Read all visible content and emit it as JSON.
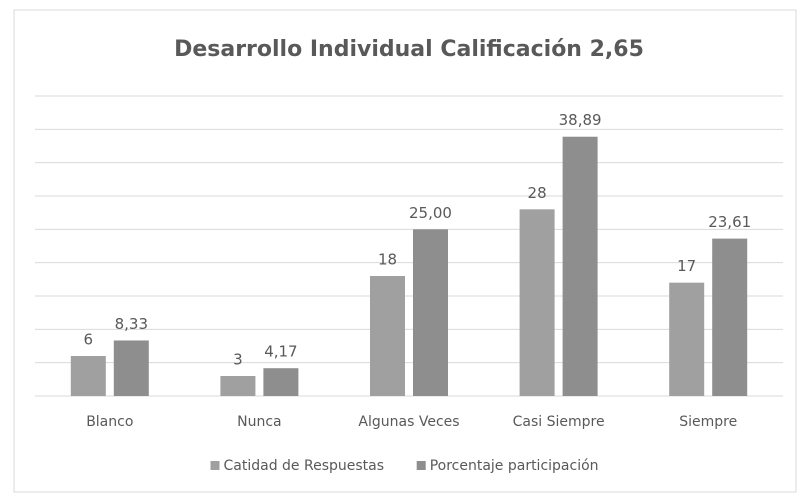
{
  "chart_data": {
    "type": "bar",
    "title": "Desarrollo Individual Calificación 2,65",
    "categories": [
      "Blanco",
      "Nunca",
      "Algunas Veces",
      "Casi Siempre",
      "Siempre"
    ],
    "series": [
      {
        "name": "Catidad de Respuestas",
        "color": "#a0a0a0",
        "values": [
          6,
          3,
          18,
          28,
          17
        ]
      },
      {
        "name": "Porcentaje participación",
        "color": "#8e8e8e",
        "values": [
          8.33,
          4.17,
          25,
          38.89,
          23.61
        ],
        "value_labels": [
          "8,33",
          "4,17",
          "25,00",
          "38,89",
          "23,61"
        ]
      }
    ],
    "ylim": [
      0,
      45
    ],
    "yticks": [
      0,
      5,
      10,
      15,
      20,
      25,
      30,
      35,
      40,
      45
    ],
    "grid": true,
    "legend": "bottom"
  }
}
